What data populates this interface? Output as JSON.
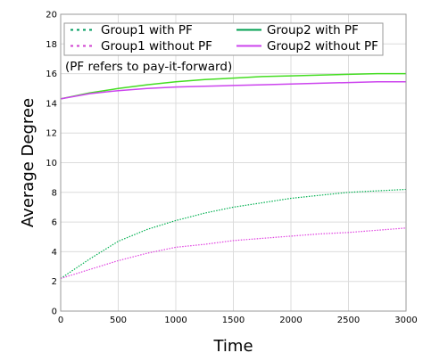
{
  "chart_data": {
    "type": "line",
    "title": "",
    "xlabel": "Time",
    "ylabel": "Average Degree",
    "xlim": [
      0,
      3000
    ],
    "ylim": [
      0,
      20
    ],
    "xticks": [
      0,
      500,
      1000,
      1500,
      2000,
      2500,
      3000
    ],
    "yticks": [
      0,
      2,
      4,
      6,
      8,
      10,
      12,
      14,
      16,
      18,
      20
    ],
    "grid": true,
    "legend_position": "top",
    "annotation": "(PF refers to pay-it-forward)",
    "series": [
      {
        "name": "Group1 with PF",
        "color": "#00b050",
        "dash": "dotted",
        "x": [
          0,
          250,
          500,
          750,
          1000,
          1250,
          1500,
          1750,
          2000,
          2250,
          2500,
          2750,
          3000
        ],
        "y": [
          2.2,
          3.5,
          4.7,
          5.5,
          6.1,
          6.6,
          7.0,
          7.3,
          7.6,
          7.8,
          8.0,
          8.1,
          8.2
        ]
      },
      {
        "name": "Group1 without PF",
        "color": "#e040e0",
        "dash": "dotted",
        "x": [
          0,
          250,
          500,
          750,
          1000,
          1250,
          1500,
          1750,
          2000,
          2250,
          2500,
          2750,
          3000
        ],
        "y": [
          2.2,
          2.8,
          3.4,
          3.9,
          4.3,
          4.5,
          4.75,
          4.9,
          5.05,
          5.2,
          5.3,
          5.45,
          5.6
        ]
      },
      {
        "name": "Group2 with PF",
        "color": "#44dd22",
        "dash": "solid",
        "x": [
          0,
          250,
          500,
          750,
          1000,
          1250,
          1500,
          1750,
          2000,
          2250,
          2500,
          2750,
          3000
        ],
        "y": [
          14.3,
          14.7,
          15.0,
          15.25,
          15.45,
          15.6,
          15.7,
          15.8,
          15.85,
          15.9,
          15.95,
          16.0,
          16.0
        ]
      },
      {
        "name": "Group2 without PF",
        "color": "#cc44ee",
        "dash": "solid",
        "x": [
          0,
          250,
          500,
          750,
          1000,
          1250,
          1500,
          1750,
          2000,
          2250,
          2500,
          2750,
          3000
        ],
        "y": [
          14.3,
          14.65,
          14.85,
          15.0,
          15.1,
          15.15,
          15.2,
          15.25,
          15.3,
          15.35,
          15.4,
          15.45,
          15.45
        ]
      }
    ],
    "legend": [
      {
        "label": "Group1 with PF",
        "series": 0
      },
      {
        "label": "Group2 with PF",
        "series": 2
      },
      {
        "label": "Group1 without PF",
        "series": 1
      },
      {
        "label": "Group2 without PF",
        "series": 3
      }
    ],
    "colors": {
      "legend_group1_with": "#009e60",
      "legend_group2_with": "#00a050",
      "legend_group1_without": "#d040d0",
      "legend_group2_without": "#cc44ee",
      "grid": "#dcdcdc",
      "frame": "#9a9a9a"
    }
  }
}
